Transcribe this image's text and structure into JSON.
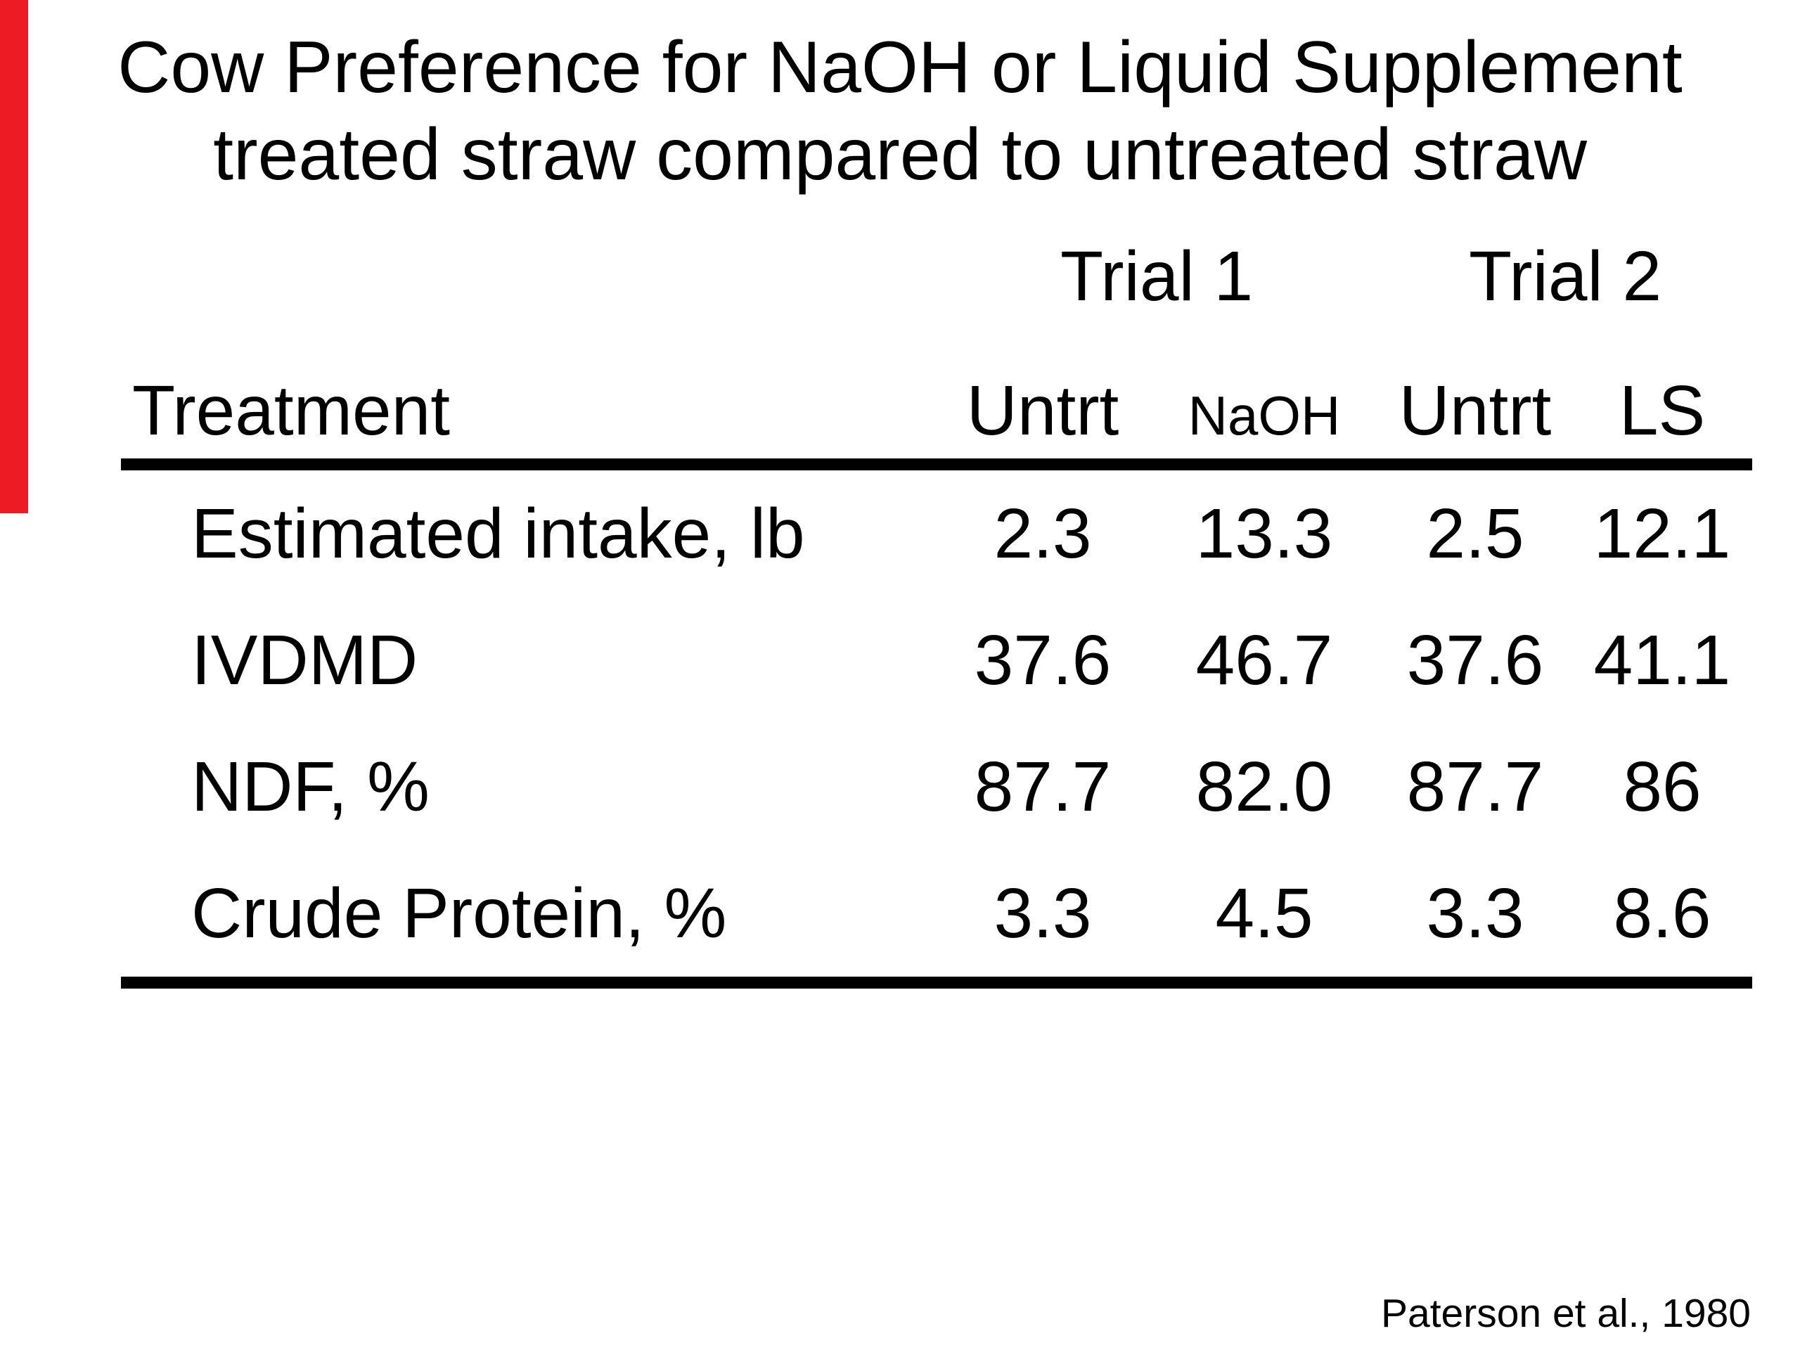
{
  "slide": {
    "title_line1": "Cow Preference for NaOH or Liquid Supplement",
    "title_line2": "treated straw compared to untreated straw",
    "citation": "Paterson et al., 1980"
  },
  "colors": {
    "background": "#ffffff",
    "text": "#000000",
    "rule": "#000000",
    "accent_bar": "#ed1c24"
  },
  "table": {
    "group_headers": [
      {
        "label": "Trial 1",
        "span": 2
      },
      {
        "label": "Trial 2",
        "span": 2
      }
    ],
    "columns": [
      "Treatment",
      "Untrt",
      "NaOH",
      "Untrt",
      "LS"
    ],
    "rows": [
      {
        "label": "Estimated intake, lb",
        "values": [
          "2.3",
          "13.3",
          "2.5",
          "12.1"
        ]
      },
      {
        "label": "IVDMD",
        "values": [
          "37.6",
          "46.7",
          "37.6",
          "41.1"
        ]
      },
      {
        "label": "NDF, %",
        "values": [
          "87.7",
          "82.0",
          "87.7",
          "86"
        ]
      },
      {
        "label": "Crude Protein, %",
        "values": [
          "3.3",
          "4.5",
          "3.3",
          "8.6"
        ]
      }
    ]
  },
  "chart_data": {
    "type": "table",
    "title": "Cow Preference for NaOH or Liquid Supplement treated straw compared to untreated straw",
    "column_groups": [
      "Trial 1",
      "Trial 1",
      "Trial 2",
      "Trial 2"
    ],
    "columns": [
      "Untrt",
      "NaOH",
      "Untrt",
      "LS"
    ],
    "row_labels": [
      "Estimated intake, lb",
      "IVDMD",
      "NDF, %",
      "Crude Protein, %"
    ],
    "values": [
      [
        2.3,
        13.3,
        2.5,
        12.1
      ],
      [
        37.6,
        46.7,
        37.6,
        41.1
      ],
      [
        87.7,
        82.0,
        87.7,
        86
      ],
      [
        3.3,
        4.5,
        3.3,
        8.6
      ]
    ],
    "source": "Paterson et al., 1980"
  }
}
